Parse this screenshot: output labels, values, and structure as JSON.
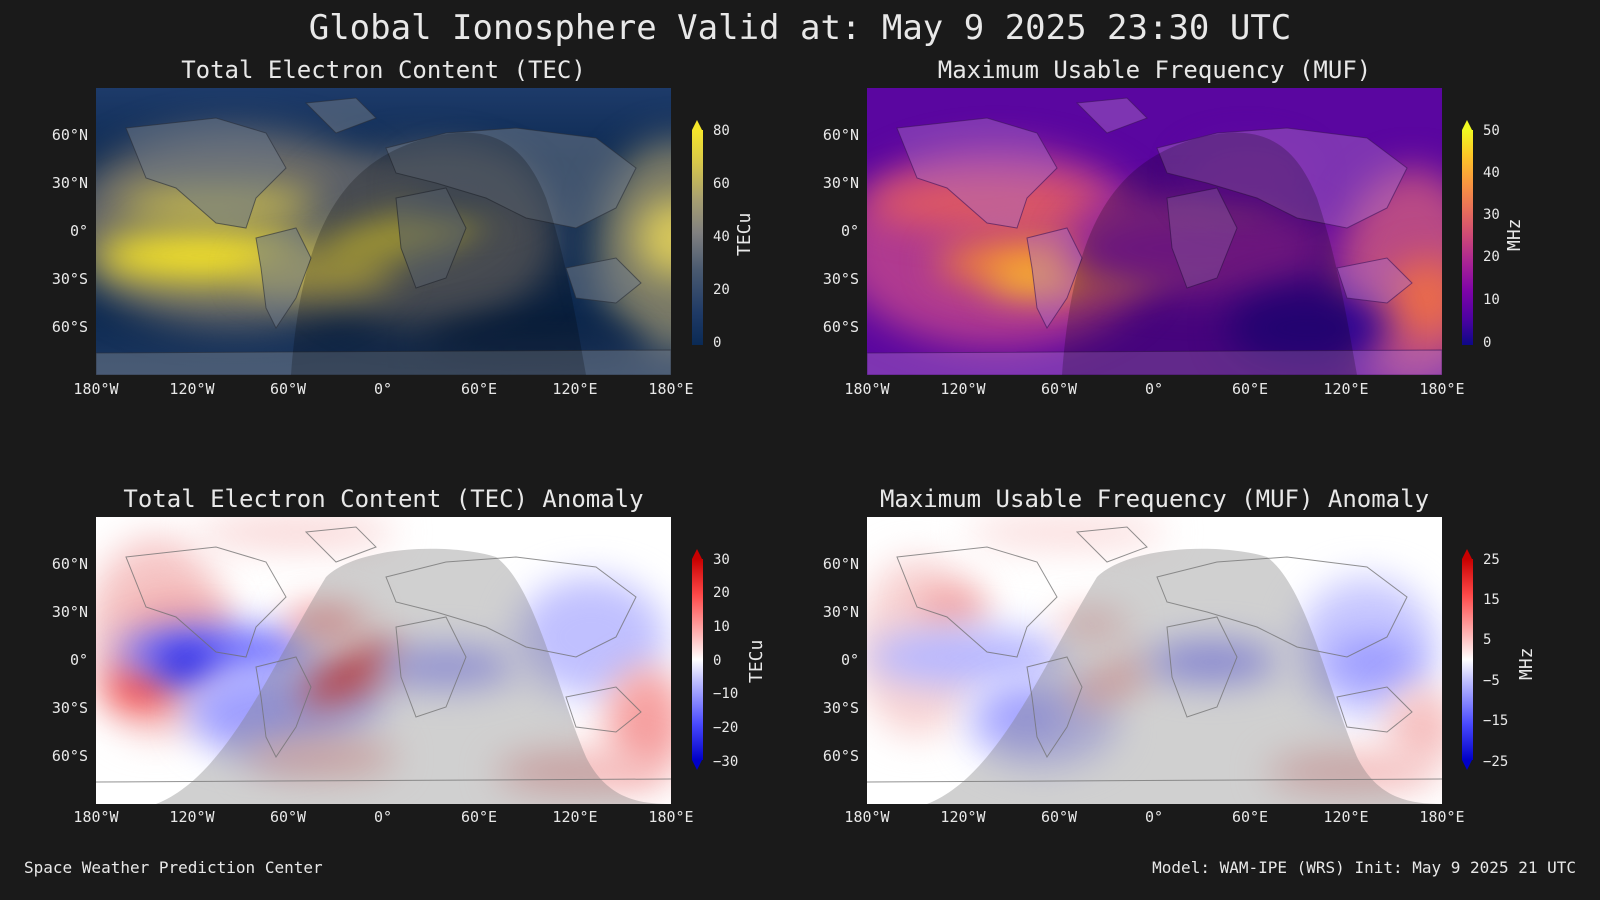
{
  "title": "Global Ionosphere Valid at: May 9 2025 23:30 UTC",
  "footer": {
    "left": "Space Weather Prediction Center",
    "right": "Model: WAM-IPE (WRS) Init: May 9 2025 21 UTC"
  },
  "chart_data": [
    {
      "type": "heatmap",
      "title": "Total Electron Content (TEC)",
      "colorbar_label": "TECu",
      "colorbar_ticks": [
        "80",
        "60",
        "40",
        "20",
        "0"
      ],
      "colorbar_range": [
        0,
        80
      ],
      "colormap": [
        "#0a2a55",
        "#1f3a66",
        "#4a5a70",
        "#808080",
        "#a8a070",
        "#d8c84a",
        "#f5e62a"
      ],
      "x_ticks": [
        "180°W",
        "120°W",
        "60°W",
        "0°",
        "60°E",
        "120°E",
        "180°E"
      ],
      "y_ticks": [
        "60°N",
        "30°N",
        "0°",
        "30°S",
        "60°S"
      ]
    },
    {
      "type": "heatmap",
      "title": "Maximum Usable Frequency (MUF)",
      "colorbar_label": "MHz",
      "colorbar_ticks": [
        "50",
        "40",
        "30",
        "20",
        "10",
        "0"
      ],
      "colorbar_range": [
        0,
        50
      ],
      "colormap": [
        "#0d0887",
        "#4c02a1",
        "#7e03a8",
        "#a92395",
        "#cc4778",
        "#e66c5c",
        "#f89540",
        "#fdc527",
        "#f0f921"
      ],
      "x_ticks": [
        "180°W",
        "120°W",
        "60°W",
        "0°",
        "60°E",
        "120°E",
        "180°E"
      ],
      "y_ticks": [
        "60°N",
        "30°N",
        "0°",
        "30°S",
        "60°S"
      ]
    },
    {
      "type": "heatmap",
      "title": "Total Electron Content (TEC) Anomaly",
      "colorbar_label": "TECu",
      "colorbar_ticks": [
        "30",
        "20",
        "10",
        "0",
        "−10",
        "−20",
        "−30"
      ],
      "colorbar_range": [
        -30,
        30
      ],
      "colormap": [
        "#0000c8",
        "#4a4aff",
        "#b8b8ff",
        "#ffffff",
        "#ffb8b8",
        "#ff4a4a",
        "#c80000"
      ],
      "x_ticks": [
        "180°W",
        "120°W",
        "60°W",
        "0°",
        "60°E",
        "120°E",
        "180°E"
      ],
      "y_ticks": [
        "60°N",
        "30°N",
        "0°",
        "30°S",
        "60°S"
      ]
    },
    {
      "type": "heatmap",
      "title": "Maximum Usable Frequency (MUF) Anomaly",
      "colorbar_label": "MHz",
      "colorbar_ticks": [
        "25",
        "15",
        "5",
        "−5",
        "−15",
        "−25"
      ],
      "colorbar_range": [
        -25,
        25
      ],
      "colormap": [
        "#0000c8",
        "#4a4aff",
        "#b8b8ff",
        "#ffffff",
        "#ffb8b8",
        "#ff4a4a",
        "#c80000"
      ],
      "x_ticks": [
        "180°W",
        "120°W",
        "60°W",
        "0°",
        "60°E",
        "120°E",
        "180°E"
      ],
      "y_ticks": [
        "60°N",
        "30°N",
        "0°",
        "30°S",
        "60°S"
      ]
    }
  ]
}
